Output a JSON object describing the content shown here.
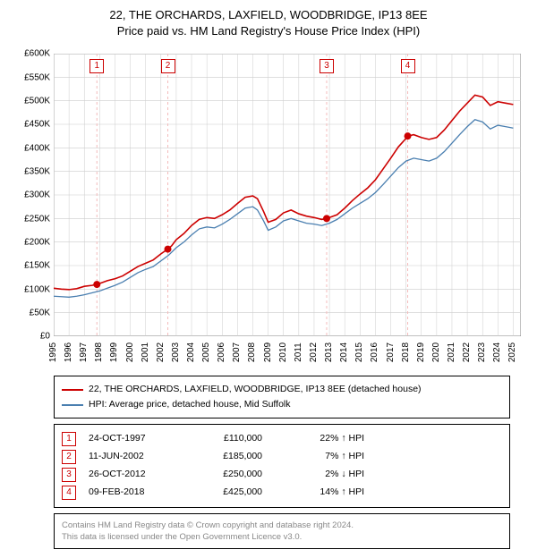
{
  "title": {
    "line1": "22, THE ORCHARDS, LAXFIELD, WOODBRIDGE, IP13 8EE",
    "line2": "Price paid vs. HM Land Registry's House Price Index (HPI)"
  },
  "chart": {
    "type": "line",
    "background_color": "#ffffff",
    "grid_color": "#cccccc",
    "vline_color": "#f4bbbb",
    "plot_border_color": "#808080",
    "title_fontsize": 13,
    "label_fontsize": 10,
    "xlim": [
      1995,
      2025.5
    ],
    "ylim": [
      0,
      600000
    ],
    "ytick_step": 50000,
    "yticks": [
      "£0",
      "£50K",
      "£100K",
      "£150K",
      "£200K",
      "£250K",
      "£300K",
      "£350K",
      "£400K",
      "£450K",
      "£500K",
      "£550K",
      "£600K"
    ],
    "xticks": [
      1995,
      1996,
      1997,
      1998,
      1999,
      2000,
      2001,
      2002,
      2003,
      2004,
      2005,
      2006,
      2007,
      2008,
      2009,
      2010,
      2011,
      2012,
      2013,
      2014,
      2015,
      2016,
      2017,
      2018,
      2019,
      2020,
      2021,
      2022,
      2023,
      2024,
      2025
    ],
    "series": [
      {
        "name": "property",
        "label": "22, THE ORCHARDS, LAXFIELD, WOODBRIDGE, IP13 8EE (detached house)",
        "color": "#cc0000",
        "line_width": 1.6,
        "data": [
          [
            1995.0,
            102000
          ],
          [
            1995.5,
            100000
          ],
          [
            1996.0,
            99000
          ],
          [
            1996.5,
            101000
          ],
          [
            1997.0,
            106000
          ],
          [
            1997.5,
            108000
          ],
          [
            1997.82,
            110000
          ],
          [
            1998.0,
            112000
          ],
          [
            1998.5,
            118000
          ],
          [
            1999.0,
            122000
          ],
          [
            1999.5,
            128000
          ],
          [
            2000.0,
            138000
          ],
          [
            2000.5,
            148000
          ],
          [
            2001.0,
            155000
          ],
          [
            2001.5,
            162000
          ],
          [
            2002.0,
            175000
          ],
          [
            2002.45,
            185000
          ],
          [
            2002.7,
            192000
          ],
          [
            2003.0,
            205000
          ],
          [
            2003.5,
            218000
          ],
          [
            2004.0,
            235000
          ],
          [
            2004.5,
            248000
          ],
          [
            2005.0,
            252000
          ],
          [
            2005.5,
            250000
          ],
          [
            2006.0,
            258000
          ],
          [
            2006.5,
            268000
          ],
          [
            2007.0,
            282000
          ],
          [
            2007.5,
            295000
          ],
          [
            2008.0,
            298000
          ],
          [
            2008.3,
            292000
          ],
          [
            2008.7,
            265000
          ],
          [
            2009.0,
            242000
          ],
          [
            2009.5,
            248000
          ],
          [
            2010.0,
            262000
          ],
          [
            2010.5,
            268000
          ],
          [
            2011.0,
            260000
          ],
          [
            2011.5,
            255000
          ],
          [
            2012.0,
            252000
          ],
          [
            2012.5,
            248000
          ],
          [
            2012.82,
            250000
          ],
          [
            2013.0,
            252000
          ],
          [
            2013.5,
            258000
          ],
          [
            2014.0,
            272000
          ],
          [
            2014.5,
            288000
          ],
          [
            2015.0,
            302000
          ],
          [
            2015.5,
            315000
          ],
          [
            2016.0,
            332000
          ],
          [
            2016.5,
            355000
          ],
          [
            2017.0,
            378000
          ],
          [
            2017.5,
            402000
          ],
          [
            2018.0,
            420000
          ],
          [
            2018.11,
            425000
          ],
          [
            2018.5,
            428000
          ],
          [
            2019.0,
            422000
          ],
          [
            2019.5,
            418000
          ],
          [
            2020.0,
            422000
          ],
          [
            2020.5,
            438000
          ],
          [
            2021.0,
            458000
          ],
          [
            2021.5,
            478000
          ],
          [
            2022.0,
            495000
          ],
          [
            2022.5,
            512000
          ],
          [
            2023.0,
            508000
          ],
          [
            2023.5,
            490000
          ],
          [
            2024.0,
            498000
          ],
          [
            2024.5,
            495000
          ],
          [
            2025.0,
            492000
          ]
        ]
      },
      {
        "name": "hpi",
        "label": "HPI: Average price, detached house, Mid Suffolk",
        "color": "#4a7fb0",
        "line_width": 1.3,
        "data": [
          [
            1995.0,
            85000
          ],
          [
            1995.5,
            84000
          ],
          [
            1996.0,
            83000
          ],
          [
            1996.5,
            85000
          ],
          [
            1997.0,
            88000
          ],
          [
            1997.5,
            92000
          ],
          [
            1998.0,
            96000
          ],
          [
            1998.5,
            102000
          ],
          [
            1999.0,
            108000
          ],
          [
            1999.5,
            115000
          ],
          [
            2000.0,
            125000
          ],
          [
            2000.5,
            135000
          ],
          [
            2001.0,
            142000
          ],
          [
            2001.5,
            148000
          ],
          [
            2002.0,
            160000
          ],
          [
            2002.5,
            172000
          ],
          [
            2003.0,
            188000
          ],
          [
            2003.5,
            200000
          ],
          [
            2004.0,
            215000
          ],
          [
            2004.5,
            228000
          ],
          [
            2005.0,
            232000
          ],
          [
            2005.5,
            230000
          ],
          [
            2006.0,
            238000
          ],
          [
            2006.5,
            248000
          ],
          [
            2007.0,
            260000
          ],
          [
            2007.5,
            272000
          ],
          [
            2008.0,
            275000
          ],
          [
            2008.3,
            268000
          ],
          [
            2008.7,
            245000
          ],
          [
            2009.0,
            225000
          ],
          [
            2009.5,
            232000
          ],
          [
            2010.0,
            245000
          ],
          [
            2010.5,
            250000
          ],
          [
            2011.0,
            245000
          ],
          [
            2011.5,
            240000
          ],
          [
            2012.0,
            238000
          ],
          [
            2012.5,
            235000
          ],
          [
            2013.0,
            240000
          ],
          [
            2013.5,
            248000
          ],
          [
            2014.0,
            260000
          ],
          [
            2014.5,
            272000
          ],
          [
            2015.0,
            282000
          ],
          [
            2015.5,
            292000
          ],
          [
            2016.0,
            305000
          ],
          [
            2016.5,
            322000
          ],
          [
            2017.0,
            340000
          ],
          [
            2017.5,
            358000
          ],
          [
            2018.0,
            372000
          ],
          [
            2018.5,
            378000
          ],
          [
            2019.0,
            375000
          ],
          [
            2019.5,
            372000
          ],
          [
            2020.0,
            378000
          ],
          [
            2020.5,
            392000
          ],
          [
            2021.0,
            410000
          ],
          [
            2021.5,
            428000
          ],
          [
            2022.0,
            445000
          ],
          [
            2022.5,
            460000
          ],
          [
            2023.0,
            455000
          ],
          [
            2023.5,
            440000
          ],
          [
            2024.0,
            448000
          ],
          [
            2024.5,
            445000
          ],
          [
            2025.0,
            442000
          ]
        ]
      }
    ],
    "sale_points": [
      {
        "n": "1",
        "x": 1997.82,
        "y": 110000
      },
      {
        "n": "2",
        "x": 2002.45,
        "y": 185000
      },
      {
        "n": "3",
        "x": 2012.82,
        "y": 250000
      },
      {
        "n": "4",
        "x": 2018.11,
        "y": 425000
      }
    ],
    "point_color": "#cc0000",
    "point_radius": 4
  },
  "legend": {
    "border_color": "#000000"
  },
  "events": [
    {
      "n": "1",
      "date": "24-OCT-1997",
      "price": "£110,000",
      "diff": "22% ↑ HPI"
    },
    {
      "n": "2",
      "date": "11-JUN-2002",
      "price": "£185,000",
      "diff": "7% ↑ HPI"
    },
    {
      "n": "3",
      "date": "26-OCT-2012",
      "price": "£250,000",
      "diff": "2% ↓ HPI"
    },
    {
      "n": "4",
      "date": "09-FEB-2018",
      "price": "£425,000",
      "diff": "14% ↑ HPI"
    }
  ],
  "footer": {
    "line1": "Contains HM Land Registry data © Crown copyright and database right 2024.",
    "line2": "This data is licensed under the Open Government Licence v3.0."
  }
}
